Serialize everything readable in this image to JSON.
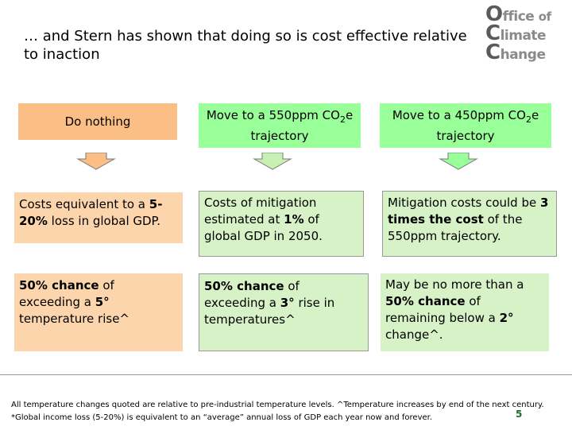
{
  "slide": {
    "title": "… and Stern has shown that doing so is cost effective relative to inaction",
    "logo": {
      "line1_cap": "O",
      "line1_rest": "ffice",
      "line1_small": "of",
      "line2_cap": "C",
      "line2_rest": "limate",
      "line3_cap": "C",
      "line3_rest": "hange"
    },
    "columns": [
      {
        "heading": "Do nothing",
        "row1": {
          "pre": "Costs equivalent to a ",
          "bold": "5-20%",
          "post": " loss in global GDP."
        },
        "row2": {
          "bold1": "50% chance",
          "mid": " of exceeding a ",
          "bold2": "5°",
          "post": " temperature rise^"
        }
      },
      {
        "heading_pre": "Move to a 550ppm CO",
        "heading_sub": "2",
        "heading_post": "e trajectory",
        "row1": {
          "pre": "Costs of mitigation estimated at ",
          "bold": "1%",
          "post": " of global GDP in 2050."
        },
        "row2": {
          "bold1": "50% chance",
          "mid": " of exceeding a ",
          "bold2": "3°",
          "post": " rise in temperatures^"
        }
      },
      {
        "heading_pre": "Move to a 450ppm CO",
        "heading_sub": "2",
        "heading_post": "e trajectory",
        "row1": {
          "pre": "Mitigation costs could be ",
          "bold": "3 times the cost",
          "post": " of the 550ppm trajectory."
        },
        "row2": {
          "pre": "May be no more than a ",
          "bold1": "50% chance",
          "mid": " of remaining below a ",
          "bold2": "2°",
          "post": " change^."
        }
      }
    ],
    "footnote1": "All temperature changes quoted are relative to pre-industrial temperature levels.  ^Temperature increases by end of the next century.",
    "footnote2": "*Global income loss (5-20%) is equivalent to an “average” annual loss of GDP each year now and forever.",
    "page_number": "5",
    "colors": {
      "orange": "#fbbf86",
      "light_orange": "#fcd5ad",
      "green": "#99ff99",
      "light_green": "#d6f2c6",
      "logo_dark": "#5a5a5a",
      "logo_light": "#8a8a8a",
      "page_number": "#1f6a30"
    }
  }
}
